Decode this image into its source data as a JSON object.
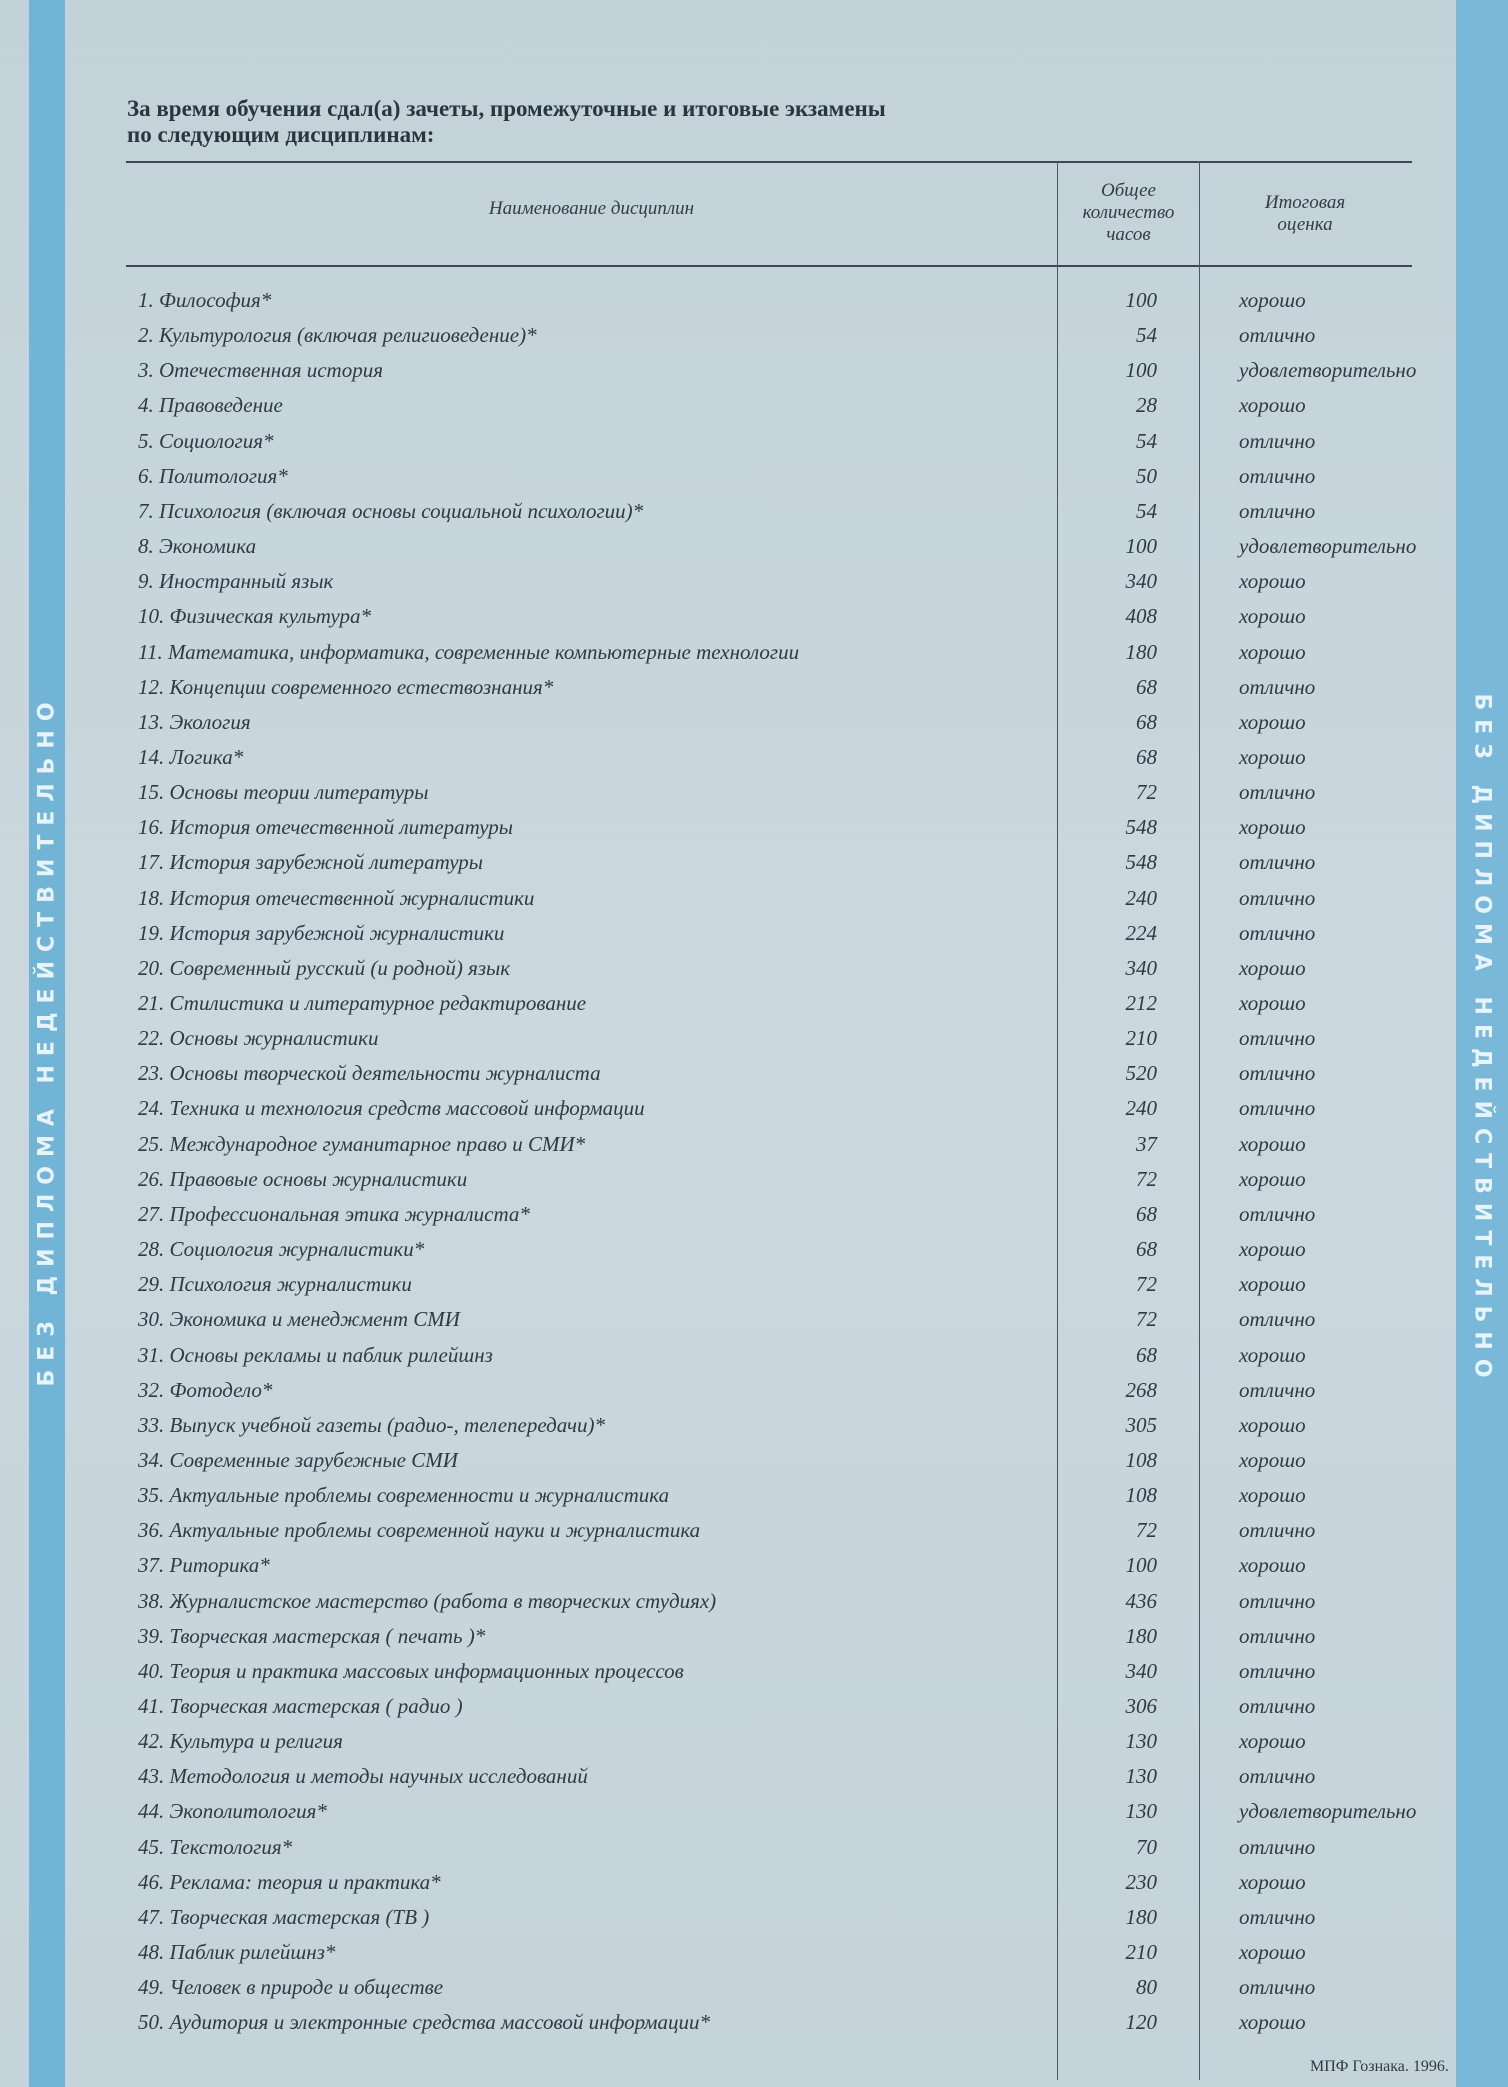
{
  "side_banner": "БЕЗ ДИПЛОМА НЕДЕЙСТВИТЕЛЬНО",
  "intro": [
    "За время обучения сдал(а) зачеты, промежуточные и итоговые экзамены",
    "по следующим дисциплинам:"
  ],
  "headers": {
    "name": "Наименование дисциплин",
    "hours": [
      "Общее",
      "количество",
      "часов"
    ],
    "grade": [
      "Итоговая",
      "оценка"
    ]
  },
  "rows": [
    {
      "name": "1. Философия*",
      "hours": "100",
      "grade": "хорошо"
    },
    {
      "name": "2. Культурология (включая религиоведение)*",
      "hours": "54",
      "grade": "отлично"
    },
    {
      "name": "3. Отечественная история",
      "hours": "100",
      "grade": "удовлетворительно"
    },
    {
      "name": "4. Правоведение",
      "hours": "28",
      "grade": "хорошо"
    },
    {
      "name": "5. Социология*",
      "hours": "54",
      "grade": "отлично"
    },
    {
      "name": "6. Политология*",
      "hours": "50",
      "grade": "отлично"
    },
    {
      "name": "7. Психология (включая основы социальной психологии)*",
      "hours": "54",
      "grade": "отлично"
    },
    {
      "name": "8. Экономика",
      "hours": "100",
      "grade": "удовлетворительно"
    },
    {
      "name": "9. Иностранный язык",
      "hours": "340",
      "grade": "хорошо"
    },
    {
      "name": "10. Физическая культура*",
      "hours": "408",
      "grade": "хорошо"
    },
    {
      "name": "11. Математика, информатика, современные компьютерные технологии",
      "hours": "180",
      "grade": "хорошо"
    },
    {
      "name": "12. Концепции современного естествознания*",
      "hours": "68",
      "grade": "отлично"
    },
    {
      "name": "13. Экология",
      "hours": "68",
      "grade": "хорошо"
    },
    {
      "name": "14. Логика*",
      "hours": "68",
      "grade": "хорошо"
    },
    {
      "name": "15. Основы теории литературы",
      "hours": "72",
      "grade": "отлично"
    },
    {
      "name": "16. История отечественной литературы",
      "hours": "548",
      "grade": "хорошо"
    },
    {
      "name": "17. История зарубежной литературы",
      "hours": "548",
      "grade": "отлично"
    },
    {
      "name": "18. История отечественной журналистики",
      "hours": "240",
      "grade": "отлично"
    },
    {
      "name": "19. История зарубежной журналистики",
      "hours": "224",
      "grade": "отлично"
    },
    {
      "name": "20. Современный русский (и родной) язык",
      "hours": "340",
      "grade": "хорошо"
    },
    {
      "name": "21. Стилистика и литературное редактирование",
      "hours": "212",
      "grade": "хорошо"
    },
    {
      "name": "22. Основы журналистики",
      "hours": "210",
      "grade": "отлично"
    },
    {
      "name": "23. Основы творческой деятельности журналиста",
      "hours": "520",
      "grade": "отлично"
    },
    {
      "name": "24. Техника и технология средств массовой информации",
      "hours": "240",
      "grade": "отлично"
    },
    {
      "name": "25. Международное гуманитарное право и СМИ*",
      "hours": "37",
      "grade": "хорошо"
    },
    {
      "name": "26. Правовые основы журналистики",
      "hours": "72",
      "grade": "хорошо"
    },
    {
      "name": "27. Профессиональная этика журналиста*",
      "hours": "68",
      "grade": "отлично"
    },
    {
      "name": "28. Социология журналистики*",
      "hours": "68",
      "grade": "хорошо"
    },
    {
      "name": "29. Психология журналистики",
      "hours": "72",
      "grade": "хорошо"
    },
    {
      "name": "30. Экономика и менеджмент СМИ",
      "hours": "72",
      "grade": "отлично"
    },
    {
      "name": "31. Основы рекламы и паблик рилейшнз",
      "hours": "68",
      "grade": "хорошо"
    },
    {
      "name": "32. Фотодело*",
      "hours": "268",
      "grade": "отлично"
    },
    {
      "name": "33. Выпуск учебной газеты (радио-, телепередачи)*",
      "hours": "305",
      "grade": "хорошо"
    },
    {
      "name": "34. Современные зарубежные СМИ",
      "hours": "108",
      "grade": "хорошо"
    },
    {
      "name": "35. Актуальные проблемы современности и журналистика",
      "hours": "108",
      "grade": "хорошо"
    },
    {
      "name": "36. Актуальные проблемы современной науки и журналистика",
      "hours": "72",
      "grade": "отлично"
    },
    {
      "name": "37. Риторика*",
      "hours": "100",
      "grade": "хорошо"
    },
    {
      "name": "38. Журналистское мастерство (работа в творческих студиях)",
      "hours": "436",
      "grade": "отлично"
    },
    {
      "name": "39. Творческая мастерская ( печать )*",
      "hours": "180",
      "grade": "отлично"
    },
    {
      "name": "40. Теория и практика массовых информационных процессов",
      "hours": "340",
      "grade": "отлично"
    },
    {
      "name": "41. Творческая мастерская ( радио )",
      "hours": "306",
      "grade": "отлично"
    },
    {
      "name": "42. Культура и религия",
      "hours": "130",
      "grade": "хорошо"
    },
    {
      "name": "43. Методология и методы научных исследований",
      "hours": "130",
      "grade": "отлично"
    },
    {
      "name": "44. Экополитология*",
      "hours": "130",
      "grade": "удовлетворительно"
    },
    {
      "name": "45. Текстология*",
      "hours": "70",
      "grade": "отлично"
    },
    {
      "name": "46. Реклама: теория и практика*",
      "hours": "230",
      "grade": "хорошо"
    },
    {
      "name": "47. Творческая мастерская (ТВ )",
      "hours": "180",
      "grade": "отлично"
    },
    {
      "name": "48. Паблик рилейшнз*",
      "hours": "210",
      "grade": "хорошо"
    },
    {
      "name": "49. Человек в природе и обществе",
      "hours": "80",
      "grade": "отлично"
    },
    {
      "name": "50. Аудитория и электронные средства массовой информации*",
      "hours": "120",
      "grade": "хорошо"
    }
  ],
  "footer": "МПФ Гознака. 1996.",
  "colors": {
    "paper": "#c6d4db",
    "strip": "#72b4d6",
    "ink": "#2f3a44"
  }
}
